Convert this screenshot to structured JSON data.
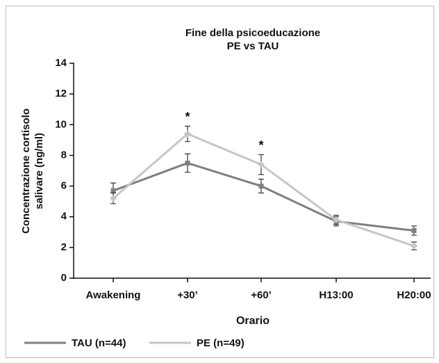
{
  "chart_data": {
    "type": "line",
    "title": [
      "Fine della psicoeducazione",
      "PE vs TAU"
    ],
    "xlabel": "Orario",
    "ylabel": [
      "Concentrazione cortisolo",
      "salivare (ng/ml)"
    ],
    "categories": [
      "Awakening",
      "+30’",
      "+60’",
      "H13:00",
      "H20:00"
    ],
    "series": [
      {
        "name": "TAU (n=44)",
        "color": "#7f7f7f",
        "marker": "square",
        "values": [
          5.7,
          7.5,
          6.0,
          3.7,
          3.1
        ],
        "errors": [
          0.5,
          0.6,
          0.45,
          0.3,
          0.3
        ]
      },
      {
        "name": "PE (n=49)",
        "color": "#c6c6c6",
        "marker": "diamond",
        "values": [
          5.2,
          9.4,
          7.4,
          3.8,
          2.1
        ],
        "errors": [
          0.35,
          0.5,
          0.65,
          0.3,
          0.25
        ]
      }
    ],
    "annotations": [
      {
        "text": "*",
        "x": "+30’"
      },
      {
        "text": "*",
        "x": "+60’"
      }
    ],
    "ylim": [
      0,
      14
    ],
    "yticks": [
      0,
      2,
      4,
      6,
      8,
      10,
      12,
      14
    ],
    "grid": false,
    "legend": "bottom"
  }
}
